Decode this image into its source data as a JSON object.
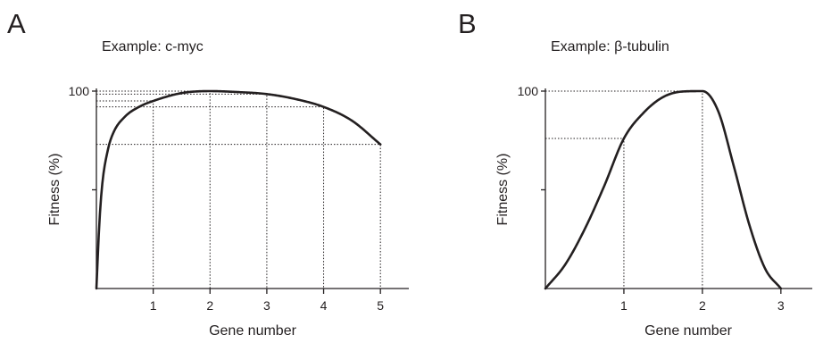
{
  "chart_data": [
    {
      "panel": "A",
      "type": "line",
      "title": "Example: c-myc",
      "xlabel": "Gene number",
      "ylabel": "Fitness (%)",
      "xlim": [
        0,
        5.5
      ],
      "ylim": [
        0,
        100
      ],
      "xticks": [
        1,
        2,
        3,
        4,
        5
      ],
      "yticks": [
        50,
        100
      ],
      "ytick_labels": [
        "100"
      ],
      "grid": false,
      "series": [
        {
          "x": [
            0,
            0.05,
            0.1,
            0.2,
            0.3,
            0.5,
            0.75,
            1,
            1.5,
            2,
            2.5,
            3,
            3.5,
            4,
            4.5,
            5
          ],
          "y": [
            0,
            32,
            52,
            70,
            79,
            87,
            92,
            95,
            99,
            100,
            99.5,
            98.5,
            96,
            92,
            85,
            73
          ]
        }
      ],
      "guides": [
        {
          "x": 1,
          "y": 95
        },
        {
          "x": 2,
          "y": 100
        },
        {
          "x": 3,
          "y": 98.5
        },
        {
          "x": 4,
          "y": 92
        },
        {
          "x": 5,
          "y": 73
        }
      ]
    },
    {
      "panel": "B",
      "type": "line",
      "title": "Example: β-tubulin",
      "xlabel": "Gene number",
      "ylabel": "Fitness (%)",
      "xlim": [
        0,
        3.4
      ],
      "ylim": [
        0,
        100
      ],
      "xticks": [
        1,
        2,
        3
      ],
      "yticks": [
        50,
        100
      ],
      "ytick_labels": [
        "100"
      ],
      "grid": false,
      "series": [
        {
          "x": [
            0,
            0.25,
            0.5,
            0.75,
            1,
            1.25,
            1.5,
            1.75,
            2,
            2.2,
            2.4,
            2.6,
            2.8,
            3
          ],
          "y": [
            0,
            12,
            30,
            52,
            76,
            89,
            97,
            99.8,
            100,
            90,
            62,
            32,
            10,
            0
          ]
        }
      ],
      "guides": [
        {
          "x": 1,
          "y": 76
        },
        {
          "x": 2,
          "y": 100
        }
      ]
    }
  ]
}
